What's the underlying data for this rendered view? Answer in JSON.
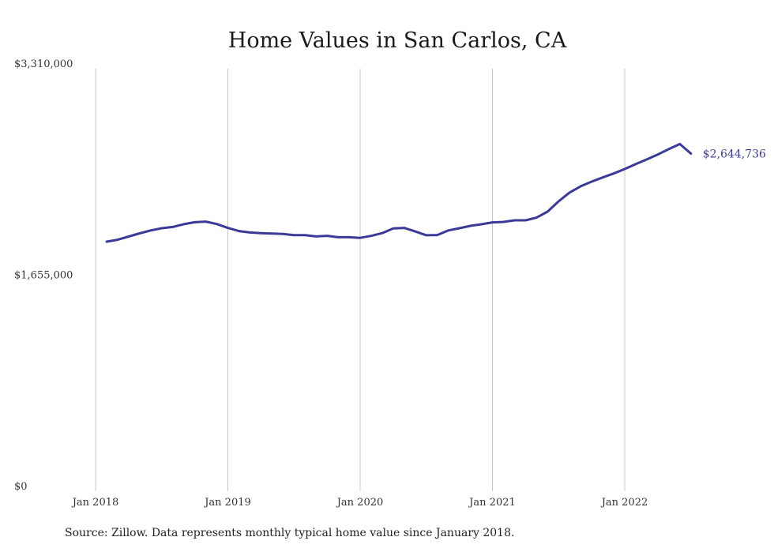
{
  "chart_data": {
    "type": "line",
    "title": "Home Values in San Carlos, CA",
    "xlabel": "",
    "ylabel": "",
    "ylim": [
      0,
      3310000
    ],
    "xlim": [
      "2018-01",
      "2022-09"
    ],
    "grid": "vertical lines at year ticks",
    "legend": "none",
    "line_color": "#3c3a98",
    "x_ticks": [
      {
        "date": "2018-01",
        "label": "Jan 2018"
      },
      {
        "date": "2019-01",
        "label": "Jan 2019"
      },
      {
        "date": "2020-01",
        "label": "Jan 2020"
      },
      {
        "date": "2021-01",
        "label": "Jan 2021"
      },
      {
        "date": "2022-01",
        "label": "Jan 2022"
      }
    ],
    "y_ticks": [
      {
        "value": 3310000,
        "label": "$3,310,000"
      },
      {
        "value": 1655000,
        "label": "$1,655,000"
      },
      {
        "value": 0,
        "label": "$0"
      }
    ],
    "x": [
      "2018-02",
      "2018-03",
      "2018-04",
      "2018-05",
      "2018-06",
      "2018-07",
      "2018-08",
      "2018-09",
      "2018-10",
      "2018-11",
      "2018-12",
      "2019-01",
      "2019-02",
      "2019-03",
      "2019-04",
      "2019-05",
      "2019-06",
      "2019-07",
      "2019-08",
      "2019-09",
      "2019-10",
      "2019-11",
      "2019-12",
      "2020-01",
      "2020-02",
      "2020-03",
      "2020-04",
      "2020-05",
      "2020-06",
      "2020-07",
      "2020-08",
      "2020-09",
      "2020-10",
      "2020-11",
      "2020-12",
      "2021-01",
      "2021-02",
      "2021-03",
      "2021-04",
      "2021-05",
      "2021-06",
      "2021-07",
      "2021-08",
      "2021-09",
      "2021-10",
      "2021-11",
      "2021-12",
      "2022-01",
      "2022-02",
      "2022-03",
      "2022-04",
      "2022-05",
      "2022-06",
      "2022-07"
    ],
    "series": [
      {
        "values": [
          1955000,
          1970000,
          1995000,
          2020000,
          2043000,
          2060000,
          2070000,
          2092000,
          2107000,
          2112000,
          2093000,
          2063000,
          2038000,
          2027000,
          2022000,
          2018000,
          2016000,
          2006000,
          2006000,
          1996000,
          2001000,
          1990000,
          1990000,
          1985000,
          2000000,
          2022000,
          2059000,
          2063000,
          2035000,
          2005000,
          2007000,
          2043000,
          2060000,
          2079000,
          2091000,
          2106000,
          2110000,
          2122000,
          2122000,
          2143000,
          2190000,
          2271000,
          2340000,
          2389000,
          2425000,
          2458000,
          2489000,
          2524000,
          2563000,
          2599000,
          2638000,
          2680000,
          2720000,
          2644736
        ]
      }
    ],
    "end_label": "$2,644,736"
  },
  "footer": {
    "source_text": "Source: Zillow. Data represents monthly typical home value since January 2018."
  }
}
